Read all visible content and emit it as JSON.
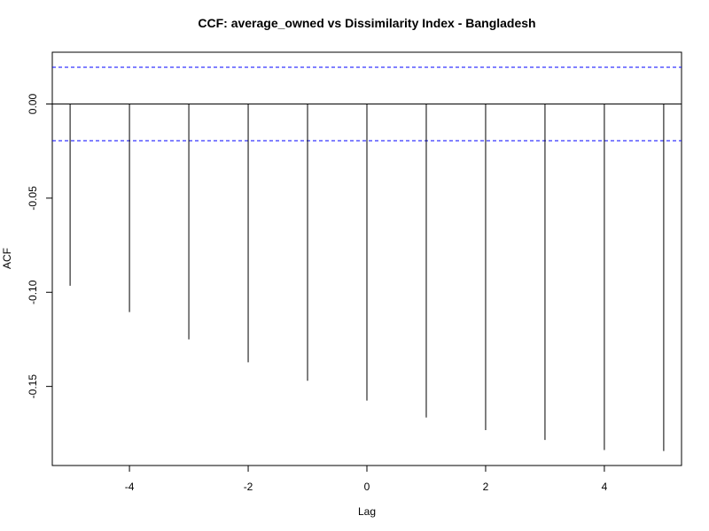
{
  "chart_data": {
    "type": "bar",
    "title": "CCF: average_owned vs Dissimilarity Index - Bangladesh",
    "xlabel": "Lag",
    "ylabel": "ACF",
    "x": [
      -5,
      -4,
      -3,
      -2,
      -1,
      0,
      1,
      2,
      3,
      4,
      5
    ],
    "values": [
      -0.0965,
      -0.1105,
      -0.125,
      -0.1372,
      -0.147,
      -0.1575,
      -0.1665,
      -0.1732,
      -0.1784,
      -0.1838,
      -0.1843
    ],
    "confidence_bound": 0.0195,
    "xlim": [
      -5.3,
      5.3
    ],
    "ylim": [
      -0.192,
      0.0275
    ],
    "xticks": [
      -4,
      -2,
      0,
      2,
      4
    ],
    "xtick_labels": [
      "-4",
      "-2",
      "0",
      "2",
      "4"
    ],
    "yticks": [
      0.0,
      -0.05,
      -0.1,
      -0.15
    ],
    "ytick_labels": [
      "0.00",
      "-0.05",
      "-0.10",
      "-0.15"
    ],
    "zero_line": true,
    "grid": false,
    "colors": {
      "bars": "#000000",
      "confidence": "#0000ff",
      "frame": "#000000"
    }
  }
}
